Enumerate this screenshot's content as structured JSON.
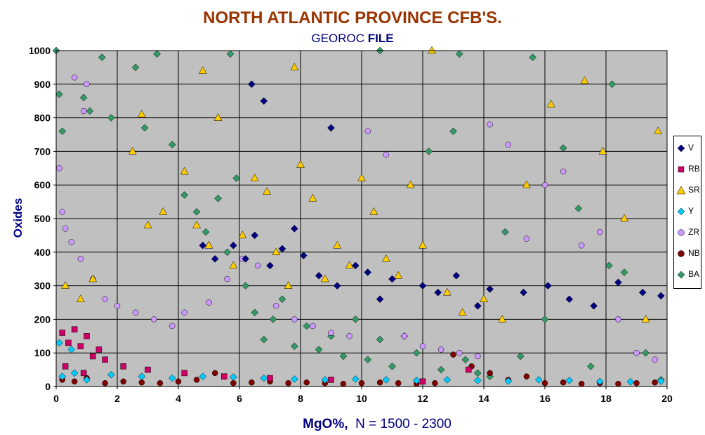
{
  "chart_data": {
    "type": "scatter",
    "title": "NORTH ATLANTIC PROVINCE CFB'S.",
    "subtitle_plain": "GEOROC ",
    "subtitle_bold": "FILE",
    "xlabel_bold": "MgO%,",
    "xlabel_rest": "  N = 1500 - 2300",
    "ylabel": "Oxides",
    "xlim": [
      0,
      20
    ],
    "ylim": [
      0,
      1000
    ],
    "xticks": [
      "0",
      "2",
      "4",
      "6",
      "8",
      "10",
      "12",
      "14",
      "16",
      "18",
      "20"
    ],
    "yticks": [
      "0",
      "100",
      "200",
      "300",
      "400",
      "500",
      "600",
      "700",
      "800",
      "900",
      "1000"
    ],
    "grid": true,
    "background": "#c0c0c0",
    "legend_position": "right",
    "series": [
      {
        "name": "V",
        "color": "#000080",
        "marker": "diamond",
        "points": [
          [
            5.8,
            420
          ],
          [
            6.2,
            380
          ],
          [
            6.5,
            450
          ],
          [
            7.0,
            360
          ],
          [
            7.4,
            410
          ],
          [
            8.1,
            390
          ],
          [
            8.6,
            330
          ],
          [
            9.2,
            300
          ],
          [
            9.8,
            360
          ],
          [
            10.2,
            340
          ],
          [
            11.0,
            320
          ],
          [
            12.0,
            300
          ],
          [
            13.1,
            330
          ],
          [
            14.2,
            290
          ],
          [
            15.3,
            280
          ],
          [
            16.1,
            300
          ],
          [
            16.8,
            260
          ],
          [
            17.6,
            240
          ],
          [
            18.4,
            310
          ],
          [
            19.2,
            280
          ],
          [
            19.8,
            270
          ],
          [
            6.4,
            900
          ],
          [
            6.8,
            850
          ],
          [
            9.0,
            770
          ],
          [
            4.8,
            420
          ],
          [
            5.2,
            380
          ],
          [
            7.8,
            470
          ],
          [
            10.6,
            260
          ],
          [
            12.5,
            280
          ],
          [
            13.8,
            240
          ]
        ]
      },
      {
        "name": "RB",
        "color": "#cc0066",
        "marker": "square",
        "points": [
          [
            0.2,
            160
          ],
          [
            0.4,
            130
          ],
          [
            0.6,
            170
          ],
          [
            0.8,
            120
          ],
          [
            1.0,
            150
          ],
          [
            1.2,
            90
          ],
          [
            1.4,
            110
          ],
          [
            0.3,
            60
          ],
          [
            0.9,
            40
          ],
          [
            1.6,
            80
          ],
          [
            2.2,
            60
          ],
          [
            3.0,
            50
          ],
          [
            4.2,
            40
          ],
          [
            5.5,
            30
          ],
          [
            7.0,
            25
          ],
          [
            9.0,
            20
          ],
          [
            12.0,
            15
          ],
          [
            13.5,
            50
          ]
        ]
      },
      {
        "name": "SR",
        "color": "#ffcc00",
        "marker": "triangle",
        "points": [
          [
            0.3,
            300
          ],
          [
            0.8,
            260
          ],
          [
            1.2,
            320
          ],
          [
            2.5,
            700
          ],
          [
            3.0,
            480
          ],
          [
            3.5,
            520
          ],
          [
            4.2,
            640
          ],
          [
            4.6,
            480
          ],
          [
            5.0,
            420
          ],
          [
            5.3,
            800
          ],
          [
            5.8,
            360
          ],
          [
            6.1,
            450
          ],
          [
            6.5,
            620
          ],
          [
            6.9,
            580
          ],
          [
            7.2,
            400
          ],
          [
            7.6,
            300
          ],
          [
            8.0,
            660
          ],
          [
            8.4,
            560
          ],
          [
            8.8,
            320
          ],
          [
            9.2,
            420
          ],
          [
            9.6,
            360
          ],
          [
            10.0,
            620
          ],
          [
            10.4,
            520
          ],
          [
            10.8,
            380
          ],
          [
            11.2,
            330
          ],
          [
            11.6,
            600
          ],
          [
            12.0,
            420
          ],
          [
            12.3,
            1000
          ],
          [
            12.8,
            280
          ],
          [
            13.3,
            220
          ],
          [
            14.0,
            260
          ],
          [
            14.6,
            200
          ],
          [
            15.4,
            600
          ],
          [
            16.2,
            840
          ],
          [
            17.3,
            910
          ],
          [
            17.9,
            700
          ],
          [
            18.6,
            500
          ],
          [
            19.3,
            200
          ],
          [
            19.7,
            760
          ],
          [
            2.8,
            810
          ],
          [
            7.8,
            950
          ],
          [
            4.8,
            940
          ]
        ]
      },
      {
        "name": "Y",
        "color": "#00ccff",
        "marker": "diamond",
        "points": [
          [
            0.2,
            30
          ],
          [
            0.6,
            40
          ],
          [
            1.0,
            20
          ],
          [
            1.8,
            35
          ],
          [
            2.8,
            30
          ],
          [
            3.8,
            25
          ],
          [
            4.8,
            30
          ],
          [
            5.8,
            28
          ],
          [
            6.8,
            25
          ],
          [
            7.8,
            22
          ],
          [
            8.8,
            20
          ],
          [
            9.8,
            22
          ],
          [
            10.8,
            20
          ],
          [
            11.8,
            18
          ],
          [
            12.8,
            20
          ],
          [
            13.8,
            18
          ],
          [
            14.8,
            16
          ],
          [
            15.8,
            20
          ],
          [
            16.8,
            18
          ],
          [
            17.8,
            15
          ],
          [
            18.8,
            14
          ],
          [
            19.8,
            16
          ],
          [
            0.1,
            130
          ],
          [
            0.5,
            110
          ]
        ]
      },
      {
        "name": "ZR",
        "color": "#cc99ff",
        "marker": "circle",
        "points": [
          [
            0.1,
            650
          ],
          [
            0.2,
            520
          ],
          [
            0.3,
            470
          ],
          [
            0.5,
            430
          ],
          [
            0.8,
            380
          ],
          [
            1.0,
            900
          ],
          [
            1.2,
            320
          ],
          [
            1.6,
            260
          ],
          [
            2.0,
            240
          ],
          [
            2.6,
            220
          ],
          [
            3.2,
            200
          ],
          [
            3.8,
            180
          ],
          [
            4.2,
            220
          ],
          [
            5.0,
            250
          ],
          [
            5.6,
            320
          ],
          [
            6.1,
            380
          ],
          [
            6.6,
            360
          ],
          [
            7.2,
            240
          ],
          [
            7.8,
            200
          ],
          [
            8.4,
            180
          ],
          [
            9.0,
            160
          ],
          [
            9.6,
            150
          ],
          [
            10.2,
            760
          ],
          [
            10.8,
            690
          ],
          [
            11.4,
            150
          ],
          [
            12.0,
            120
          ],
          [
            12.6,
            110
          ],
          [
            13.2,
            100
          ],
          [
            13.8,
            90
          ],
          [
            14.2,
            780
          ],
          [
            14.8,
            720
          ],
          [
            15.4,
            440
          ],
          [
            16.0,
            600
          ],
          [
            16.6,
            640
          ],
          [
            17.2,
            420
          ],
          [
            17.8,
            460
          ],
          [
            18.4,
            200
          ],
          [
            19.0,
            100
          ],
          [
            19.6,
            80
          ],
          [
            0.6,
            920
          ],
          [
            0.9,
            820
          ]
        ]
      },
      {
        "name": "NB",
        "color": "#800000",
        "marker": "circle",
        "points": [
          [
            0.2,
            20
          ],
          [
            0.6,
            15
          ],
          [
            1.0,
            25
          ],
          [
            1.6,
            10
          ],
          [
            2.2,
            15
          ],
          [
            2.8,
            12
          ],
          [
            3.4,
            10
          ],
          [
            4.0,
            15
          ],
          [
            4.6,
            20
          ],
          [
            5.2,
            40
          ],
          [
            5.8,
            10
          ],
          [
            6.4,
            12
          ],
          [
            7.0,
            15
          ],
          [
            7.6,
            10
          ],
          [
            8.2,
            12
          ],
          [
            8.8,
            10
          ],
          [
            9.4,
            8
          ],
          [
            10.0,
            10
          ],
          [
            10.6,
            12
          ],
          [
            11.2,
            10
          ],
          [
            11.8,
            8
          ],
          [
            12.4,
            10
          ],
          [
            13.0,
            95
          ],
          [
            13.6,
            60
          ],
          [
            14.2,
            40
          ],
          [
            14.8,
            20
          ],
          [
            15.4,
            30
          ],
          [
            16.0,
            10
          ],
          [
            16.6,
            12
          ],
          [
            17.2,
            8
          ],
          [
            17.8,
            10
          ],
          [
            18.4,
            8
          ],
          [
            19.0,
            10
          ],
          [
            19.6,
            12
          ]
        ]
      },
      {
        "name": "BA",
        "color": "#339966",
        "marker": "diamond",
        "points": [
          [
            0.0,
            1000
          ],
          [
            0.1,
            870
          ],
          [
            0.2,
            760
          ],
          [
            0.9,
            860
          ],
          [
            1.1,
            820
          ],
          [
            1.5,
            980
          ],
          [
            1.8,
            800
          ],
          [
            2.6,
            950
          ],
          [
            2.9,
            770
          ],
          [
            3.3,
            990
          ],
          [
            3.8,
            720
          ],
          [
            4.2,
            570
          ],
          [
            4.6,
            520
          ],
          [
            4.9,
            460
          ],
          [
            5.3,
            560
          ],
          [
            5.6,
            400
          ],
          [
            5.9,
            620
          ],
          [
            6.2,
            300
          ],
          [
            6.5,
            220
          ],
          [
            6.8,
            140
          ],
          [
            7.1,
            200
          ],
          [
            7.4,
            260
          ],
          [
            7.8,
            120
          ],
          [
            8.2,
            180
          ],
          [
            8.6,
            110
          ],
          [
            9.0,
            150
          ],
          [
            9.4,
            90
          ],
          [
            9.8,
            200
          ],
          [
            10.2,
            80
          ],
          [
            10.6,
            140
          ],
          [
            11.0,
            60
          ],
          [
            11.4,
            150
          ],
          [
            11.8,
            100
          ],
          [
            12.2,
            700
          ],
          [
            12.6,
            50
          ],
          [
            13.0,
            760
          ],
          [
            13.4,
            80
          ],
          [
            13.8,
            40
          ],
          [
            14.2,
            30
          ],
          [
            14.7,
            460
          ],
          [
            15.2,
            90
          ],
          [
            15.6,
            980
          ],
          [
            16.0,
            200
          ],
          [
            16.6,
            710
          ],
          [
            17.1,
            530
          ],
          [
            17.5,
            60
          ],
          [
            18.1,
            360
          ],
          [
            18.2,
            900
          ],
          [
            18.6,
            340
          ],
          [
            19.3,
            100
          ],
          [
            19.8,
            20
          ],
          [
            5.7,
            990
          ],
          [
            10.6,
            1000
          ],
          [
            13.2,
            990
          ]
        ]
      }
    ]
  }
}
